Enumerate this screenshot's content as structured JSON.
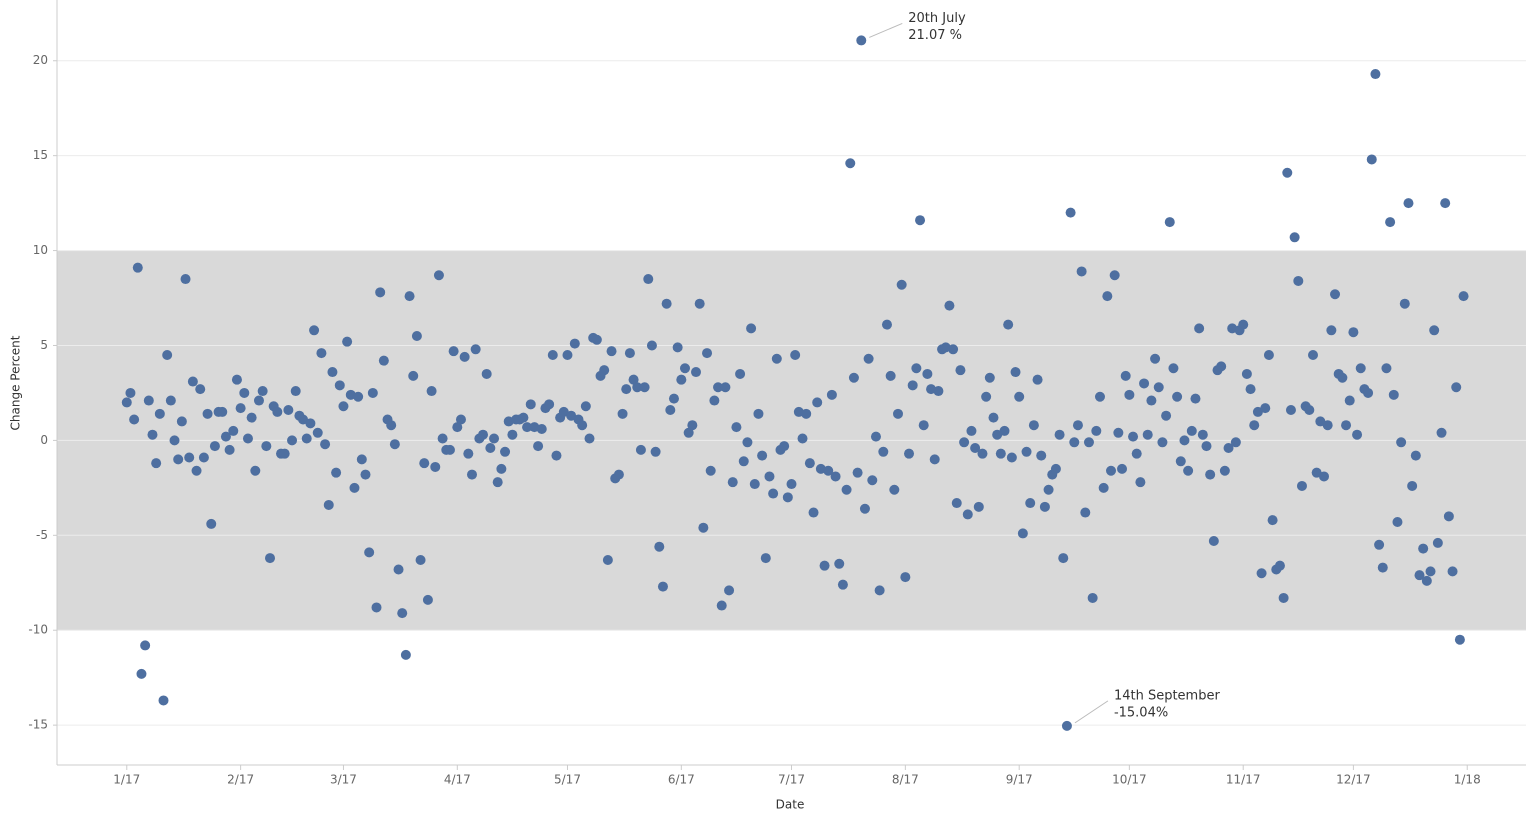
{
  "chart_data": {
    "type": "scatter",
    "x_label": "Date",
    "y_label": "Change Percent",
    "color": "#4e6fa0",
    "grid": true,
    "band": [
      -10,
      10
    ],
    "band_color": "#d9d9d9",
    "xlim": [
      -19,
      381
    ],
    "ylim": [
      -17.1,
      23.2
    ],
    "xticks": [
      {
        "value": 0,
        "label": "1/17"
      },
      {
        "value": 31,
        "label": "2/17"
      },
      {
        "value": 59,
        "label": "3/17"
      },
      {
        "value": 90,
        "label": "4/17"
      },
      {
        "value": 120,
        "label": "5/17"
      },
      {
        "value": 151,
        "label": "6/17"
      },
      {
        "value": 181,
        "label": "7/17"
      },
      {
        "value": 212,
        "label": "8/17"
      },
      {
        "value": 243,
        "label": "9/17"
      },
      {
        "value": 273,
        "label": "10/17"
      },
      {
        "value": 304,
        "label": "11/17"
      },
      {
        "value": 334,
        "label": "12/17"
      },
      {
        "value": 365,
        "label": "1/18"
      }
    ],
    "yticks": [
      -15,
      -10,
      -5,
      0,
      5,
      10,
      15,
      20
    ],
    "annotations": [
      {
        "lines": [
          "20th July",
          "21.07 %"
        ],
        "at": "max"
      },
      {
        "lines": [
          "14th September",
          "-15.04%"
        ],
        "at": "min"
      }
    ],
    "x": [
      0,
      1,
      2,
      3,
      4,
      5,
      6,
      7,
      8,
      9,
      10,
      11,
      12,
      13,
      14,
      15,
      16,
      17,
      18,
      19,
      20,
      21,
      22,
      23,
      24,
      25,
      26,
      27,
      28,
      29,
      30,
      31,
      32,
      33,
      34,
      35,
      36,
      37,
      38,
      39,
      40,
      41,
      42,
      43,
      44,
      45,
      46,
      47,
      48,
      49,
      50,
      51,
      52,
      53,
      54,
      55,
      56,
      57,
      58,
      59,
      60,
      61,
      62,
      63,
      64,
      65,
      66,
      67,
      68,
      69,
      70,
      71,
      72,
      73,
      74,
      75,
      76,
      77,
      78,
      79,
      80,
      81,
      82,
      83,
      84,
      85,
      86,
      87,
      88,
      89,
      90,
      91,
      92,
      93,
      94,
      95,
      96,
      97,
      98,
      99,
      100,
      101,
      102,
      103,
      104,
      105,
      106,
      107,
      108,
      109,
      110,
      111,
      112,
      113,
      114,
      115,
      116,
      117,
      118,
      119,
      120,
      121,
      122,
      123,
      124,
      125,
      126,
      127,
      128,
      129,
      130,
      131,
      132,
      133,
      134,
      135,
      136,
      137,
      138,
      139,
      140,
      141,
      142,
      143,
      144,
      145,
      146,
      147,
      148,
      149,
      150,
      151,
      152,
      153,
      154,
      155,
      156,
      157,
      158,
      159,
      160,
      161,
      162,
      163,
      164,
      165,
      166,
      167,
      168,
      169,
      170,
      171,
      172,
      173,
      174,
      175,
      176,
      177,
      178,
      179,
      180,
      181,
      182,
      183,
      184,
      185,
      186,
      187,
      188,
      189,
      190,
      191,
      192,
      193,
      194,
      195,
      196,
      197,
      198,
      199,
      200,
      201,
      202,
      203,
      204,
      205,
      206,
      207,
      208,
      209,
      210,
      211,
      212,
      213,
      214,
      215,
      216,
      217,
      218,
      219,
      220,
      221,
      222,
      223,
      224,
      225,
      226,
      227,
      228,
      229,
      230,
      231,
      232,
      233,
      234,
      235,
      236,
      237,
      238,
      239,
      240,
      241,
      242,
      243,
      244,
      245,
      246,
      247,
      248,
      249,
      250,
      251,
      252,
      253,
      254,
      255,
      256,
      257,
      258,
      259,
      260,
      261,
      262,
      263,
      264,
      265,
      266,
      267,
      268,
      269,
      270,
      271,
      272,
      273,
      274,
      275,
      276,
      277,
      278,
      279,
      280,
      281,
      282,
      283,
      284,
      285,
      286,
      287,
      288,
      289,
      290,
      291,
      292,
      293,
      294,
      295,
      296,
      297,
      298,
      299,
      300,
      301,
      302,
      303,
      304,
      305,
      306,
      307,
      308,
      309,
      310,
      311,
      312,
      313,
      314,
      315,
      316,
      317,
      318,
      319,
      320,
      321,
      322,
      323,
      324,
      325,
      326,
      327,
      328,
      329,
      330,
      331,
      332,
      333,
      334,
      335,
      336,
      337,
      338,
      339,
      340,
      341,
      342,
      343,
      344,
      345,
      346,
      347,
      348,
      349,
      350,
      351,
      352,
      353,
      354,
      355,
      356,
      357,
      358,
      359,
      360,
      361,
      362,
      363,
      364
    ],
    "values": [
      2.0,
      2.5,
      1.1,
      9.1,
      -12.3,
      -10.8,
      2.1,
      0.3,
      -1.2,
      1.4,
      -13.7,
      4.5,
      2.1,
      0,
      -1.0,
      1.0,
      8.5,
      -0.9,
      3.1,
      -1.6,
      2.7,
      -0.9,
      1.4,
      -4.4,
      -0.3,
      1.5,
      1.5,
      0.2,
      -0.5,
      0.5,
      3.2,
      1.7,
      2.5,
      0.1,
      1.2,
      -1.6,
      2.1,
      2.6,
      -0.3,
      -6.2,
      1.8,
      1.5,
      -0.7,
      -0.7,
      1.6,
      0,
      2.6,
      1.3,
      1.1,
      0.1,
      0.9,
      5.8,
      0.4,
      4.6,
      -0.2,
      -3.4,
      3.6,
      -1.7,
      2.9,
      1.8,
      5.2,
      2.4,
      -2.5,
      2.3,
      -1.0,
      -1.8,
      -5.9,
      2.5,
      -8.8,
      7.8,
      4.2,
      1.1,
      0.8,
      -0.2,
      -6.8,
      -9.1,
      -11.3,
      7.6,
      3.4,
      5.5,
      -6.3,
      -1.2,
      -8.4,
      2.6,
      -1.4,
      8.7,
      0.1,
      -0.5,
      -0.5,
      4.7,
      0.7,
      1.1,
      4.4,
      -0.7,
      -1.8,
      4.8,
      0.1,
      0.3,
      3.5,
      -0.4,
      0.1,
      -2.2,
      -1.5,
      -0.6,
      1.0,
      0.3,
      1.1,
      1.1,
      1.2,
      0.7,
      1.9,
      0.7,
      -0.3,
      0.6,
      1.7,
      1.9,
      4.5,
      -0.8,
      1.2,
      1.5,
      4.5,
      1.3,
      5.1,
      1.1,
      0.8,
      1.8,
      0.1,
      5.4,
      5.3,
      3.4,
      3.7,
      -6.3,
      4.7,
      -2.0,
      -1.8,
      1.4,
      2.7,
      4.6,
      3.2,
      2.8,
      -0.5,
      2.8,
      8.5,
      5.0,
      -0.6,
      -5.6,
      -7.7,
      7.2,
      1.6,
      2.2,
      4.9,
      3.2,
      3.8,
      0.4,
      0.8,
      3.6,
      7.2,
      -4.6,
      4.6,
      -1.6,
      2.1,
      2.8,
      -8.7,
      2.8,
      -7.9,
      -2.2,
      0.7,
      3.5,
      -1.1,
      -0.1,
      5.9,
      -2.3,
      1.4,
      -0.8,
      -6.2,
      -1.9,
      -2.8,
      4.3,
      -0.5,
      -0.3,
      -3.0,
      -2.3,
      4.5,
      1.5,
      0.1,
      1.4,
      -1.2,
      -3.8,
      2.0,
      -1.5,
      -6.6,
      -1.6,
      2.4,
      -1.9,
      -6.5,
      -7.6,
      -2.6,
      14.6,
      3.3,
      -1.7,
      21.07,
      -3.6,
      4.3,
      -2.1,
      0.2,
      -7.9,
      -0.6,
      6.1,
      3.4,
      -2.6,
      1.4,
      8.2,
      -7.2,
      -0.7,
      2.9,
      3.8,
      11.6,
      0.8,
      3.5,
      2.7,
      -1.0,
      2.6,
      4.8,
      4.9,
      7.1,
      4.8,
      -3.3,
      3.7,
      -0.1,
      -3.9,
      0.5,
      -0.4,
      -3.5,
      -0.7,
      2.3,
      3.3,
      1.2,
      0.3,
      -0.7,
      0.5,
      6.1,
      -0.9,
      3.6,
      2.3,
      -4.9,
      -0.6,
      -3.3,
      0.8,
      3.2,
      -0.8,
      -3.5,
      -2.6,
      -1.8,
      -1.5,
      0.3,
      -6.2,
      -15.04,
      12.0,
      -0.1,
      0.8,
      8.9,
      -3.8,
      -0.1,
      -8.3,
      0.5,
      2.3,
      -2.5,
      7.6,
      -1.6,
      8.7,
      0.4,
      -1.5,
      3.4,
      2.4,
      0.2,
      -0.7,
      -2.2,
      3.0,
      0.3,
      2.1,
      4.3,
      2.8,
      -0.1,
      1.3,
      11.5,
      3.8,
      2.3,
      -1.1,
      0,
      -1.6,
      0.5,
      2.2,
      5.9,
      0.3,
      -0.3,
      -1.8,
      -5.3,
      3.7,
      3.9,
      -1.6,
      -0.4,
      5.9,
      -0.1,
      5.8,
      6.1,
      3.5,
      2.7,
      0.8,
      1.5,
      -7.0,
      1.7,
      4.5,
      -4.2,
      -6.8,
      -6.6,
      -8.3,
      14.1,
      1.6,
      10.7,
      8.4,
      -2.4,
      1.8,
      1.6,
      4.5,
      -1.7,
      1.0,
      -1.9,
      0.8,
      5.8,
      7.7,
      3.5,
      3.3,
      0.8,
      2.1,
      5.7,
      0.3,
      3.8,
      2.7,
      2.5,
      14.8,
      19.3,
      -5.5,
      -6.7,
      3.8,
      11.5,
      2.4,
      -4.3,
      -0.1,
      7.2,
      12.5,
      -2.4,
      -0.8,
      -7.1,
      -5.7,
      -7.4,
      -6.9,
      5.8,
      -5.4,
      0.4,
      12.5,
      -4.0,
      -6.9,
      2.8,
      -10.5,
      7.6
    ]
  }
}
